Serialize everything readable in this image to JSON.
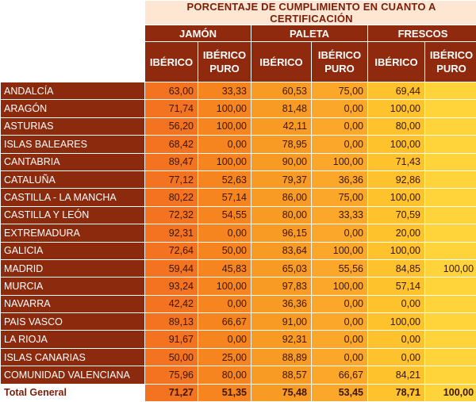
{
  "title": "PORCENTAJE DE CUMPLIMIENTO EN CUANTO A CERTIFICACIÓN",
  "groups": [
    "JAMÓN",
    "PALETA",
    "FRESCOS"
  ],
  "subheaders": [
    [
      "IBÉRICO"
    ],
    [
      "IBÉRICO",
      "PURO"
    ],
    [
      "IBÉRICO"
    ],
    [
      "IBÉRICO",
      "PURO"
    ],
    [
      "IBÉRICO"
    ],
    [
      "IBÉRICO",
      "PURO"
    ]
  ],
  "rows": [
    {
      "region": "ANDALCÍA",
      "values": [
        "63,00",
        "33,33",
        "60,53",
        "75,00",
        "69,44",
        ""
      ]
    },
    {
      "region": "ARAGÓN",
      "values": [
        "71,74",
        "100,00",
        "81,48",
        "0,00",
        "100,00",
        ""
      ]
    },
    {
      "region": "ASTURIAS",
      "values": [
        "56,20",
        "100,00",
        "42,11",
        "0,00",
        "80,00",
        ""
      ]
    },
    {
      "region": "ISLAS BALEARES",
      "values": [
        "68,42",
        "0,00",
        "78,95",
        "0,00",
        "100,00",
        ""
      ]
    },
    {
      "region": "CANTABRIA",
      "values": [
        "89,47",
        "100,00",
        "90,00",
        "100,00",
        "71,43",
        ""
      ]
    },
    {
      "region": "CATALUÑA",
      "values": [
        "77,12",
        "52,63",
        "79,37",
        "36,36",
        "92,86",
        ""
      ]
    },
    {
      "region": "CASTILLA - LA MANCHA",
      "values": [
        "80,22",
        "57,14",
        "86,00",
        "75,00",
        "100,00",
        ""
      ]
    },
    {
      "region": "CASTILLA Y LEÓN",
      "values": [
        "72,32",
        "54,55",
        "80,00",
        "33,33",
        "70,59",
        ""
      ]
    },
    {
      "region": "EXTREMADURA",
      "values": [
        "92,31",
        "0,00",
        "96,15",
        "0,00",
        "20,00",
        ""
      ]
    },
    {
      "region": "GALICIA",
      "values": [
        "72,64",
        "50,00",
        "83,64",
        "100,00",
        "100,00",
        ""
      ]
    },
    {
      "region": "MADRID",
      "values": [
        "59,44",
        "45,83",
        "65,03",
        "55,56",
        "84,85",
        "100,00"
      ]
    },
    {
      "region": "MURCIA",
      "values": [
        "93,24",
        "100,00",
        "97,83",
        "100,00",
        "57,14",
        ""
      ]
    },
    {
      "region": "NAVARRA",
      "values": [
        "42,42",
        "0,00",
        "36,36",
        "0,00",
        "0,00",
        ""
      ]
    },
    {
      "region": "PAIS VASCO",
      "values": [
        "89,13",
        "66,67",
        "91,00",
        "0,00",
        "100,00",
        ""
      ]
    },
    {
      "region": "LA RIOJA",
      "values": [
        "91,67",
        "0,00",
        "92,31",
        "0,00",
        "0,00",
        ""
      ]
    },
    {
      "region": "ISLAS CANARIAS",
      "values": [
        "50,00",
        "25,00",
        "88,89",
        "0,00",
        "0,00",
        ""
      ]
    },
    {
      "region": "COMUNIDAD VALENCIANA",
      "values": [
        "75,96",
        "80,00",
        "88,57",
        "66,67",
        "84,21",
        ""
      ]
    }
  ],
  "total": {
    "label": "Total General",
    "values": [
      "71,27",
      "51,35",
      "75,48",
      "53,45",
      "78,71",
      "100,00"
    ]
  },
  "colors": {
    "header_dark": "#8f2a0e",
    "title_bg": "#fde6d2",
    "title_text": "#7a1e0c",
    "col_colors": [
      "#f47320",
      "#f7851f",
      "#f89b25",
      "#fba82a",
      "#fdc22c",
      "#ffd33a"
    ]
  }
}
